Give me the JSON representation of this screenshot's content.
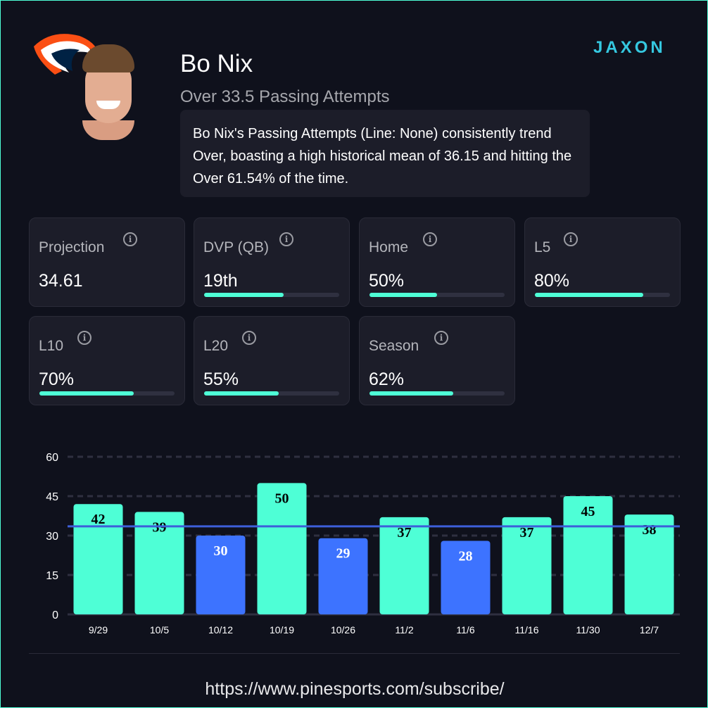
{
  "header": {
    "name": "Bo Nix",
    "prop": "Over 33.5 Passing Attempts",
    "description": "Bo Nix's Passing Attempts (Line: None) consistently trend Over, boasting a high historical mean of 36.15 and hitting the Over 61.54% of the time.",
    "brand": "JAXON"
  },
  "cards": [
    {
      "label": "Projection",
      "value": "34.61",
      "progress": null
    },
    {
      "label": "DVP (QB)",
      "value": "19th",
      "progress": 59
    },
    {
      "label": "Home",
      "value": "50%",
      "progress": 50
    },
    {
      "label": "L5",
      "value": "80%",
      "progress": 80
    },
    {
      "label": "L10",
      "value": "70%",
      "progress": 70
    },
    {
      "label": "L20",
      "value": "55%",
      "progress": 55
    },
    {
      "label": "Season",
      "value": "62%",
      "progress": 62
    }
  ],
  "footer": {
    "url": "https://www.pinesports.com/subscribe/"
  },
  "colors": {
    "over": "#4effd6",
    "under": "#3d73ff",
    "line": "#3d5fd9"
  },
  "chart_data": {
    "type": "bar",
    "categories": [
      "9/29",
      "10/5",
      "10/12",
      "10/19",
      "10/26",
      "11/2",
      "11/6",
      "11/16",
      "11/30",
      "12/7"
    ],
    "values": [
      42,
      39,
      30,
      50,
      29,
      37,
      28,
      37,
      45,
      38
    ],
    "line": 33.5,
    "ylim": [
      0,
      60
    ],
    "yticks": [
      0,
      15,
      30,
      45,
      60
    ],
    "title": "",
    "xlabel": "",
    "ylabel": ""
  }
}
